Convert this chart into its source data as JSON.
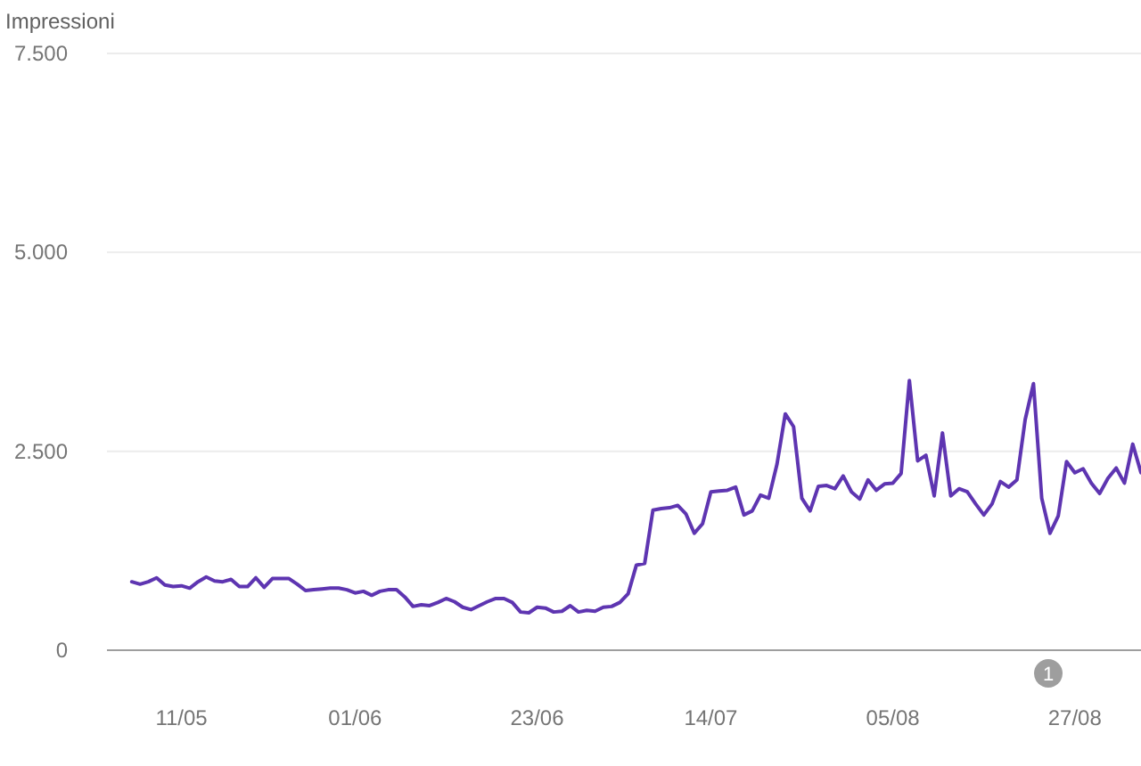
{
  "chart_data": {
    "type": "line",
    "ylabel": "Impressioni",
    "ylim": [
      0,
      7500
    ],
    "yticks": [
      {
        "value": 0,
        "label": "0"
      },
      {
        "value": 2500,
        "label": "2.500"
      },
      {
        "value": 5000,
        "label": "5.000"
      },
      {
        "value": 7500,
        "label": "7.500"
      }
    ],
    "xlim": [
      "--05-02",
      "--09-04"
    ],
    "xticks": [
      {
        "value": "--05-11",
        "label": "11/05"
      },
      {
        "value": "--06-01",
        "label": "01/06"
      },
      {
        "value": "--06-23",
        "label": "23/06"
      },
      {
        "value": "--07-14",
        "label": "14/07"
      },
      {
        "value": "--08-05",
        "label": "05/08"
      },
      {
        "value": "--08-27",
        "label": "27/08"
      }
    ],
    "grid": "y",
    "marker": "none",
    "line_style": "solid",
    "annotations": [
      "1"
    ],
    "x": [
      "--05-05",
      "--05-06",
      "--05-07",
      "--05-08",
      "--05-09",
      "--05-10",
      "--05-11",
      "--05-12",
      "--05-13",
      "--05-14",
      "--05-15",
      "--05-16",
      "--05-17",
      "--05-18",
      "--05-19",
      "--05-20",
      "--05-21",
      "--05-22",
      "--05-23",
      "--05-24",
      "--05-25",
      "--05-26",
      "--05-27",
      "--05-28",
      "--05-29",
      "--05-30",
      "--05-31",
      "--06-01",
      "--06-02",
      "--06-03",
      "--06-04",
      "--06-05",
      "--06-06",
      "--06-07",
      "--06-08",
      "--06-09",
      "--06-10",
      "--06-11",
      "--06-12",
      "--06-13",
      "--06-14",
      "--06-15",
      "--06-16",
      "--06-17",
      "--06-18",
      "--06-19",
      "--06-20",
      "--06-21",
      "--06-22",
      "--06-23",
      "--06-24",
      "--06-25",
      "--06-26",
      "--06-27",
      "--06-28",
      "--06-29",
      "--06-30",
      "--07-01",
      "--07-02",
      "--07-03",
      "--07-04",
      "--07-05",
      "--07-06",
      "--07-07",
      "--07-08",
      "--07-09",
      "--07-10",
      "--07-11",
      "--07-12",
      "--07-13",
      "--07-14",
      "--07-15",
      "--07-16",
      "--07-17",
      "--07-18",
      "--07-19",
      "--07-20",
      "--07-21",
      "--07-22",
      "--07-23",
      "--07-24",
      "--07-25",
      "--07-26",
      "--07-27",
      "--07-28",
      "--07-29",
      "--07-30",
      "--07-31",
      "--08-01",
      "--08-02",
      "--08-03",
      "--08-04",
      "--08-05",
      "--08-06",
      "--08-07",
      "--08-08",
      "--08-09",
      "--08-10",
      "--08-11",
      "--08-12",
      "--08-13",
      "--08-14",
      "--08-15",
      "--08-16",
      "--08-17",
      "--08-18",
      "--08-19",
      "--08-20",
      "--08-21",
      "--08-22",
      "--08-23",
      "--08-24",
      "--08-25",
      "--08-26",
      "--08-27",
      "--08-28",
      "--08-29",
      "--08-30",
      "--08-31",
      "--09-01",
      "--09-02",
      "--09-03",
      "--09-04"
    ],
    "series": [
      {
        "color": "#5e35b1",
        "values": [
          860,
          830,
          860,
          910,
          820,
          800,
          810,
          780,
          860,
          920,
          870,
          860,
          890,
          800,
          800,
          910,
          790,
          900,
          900,
          900,
          830,
          750,
          760,
          770,
          780,
          780,
          760,
          720,
          740,
          690,
          740,
          760,
          760,
          670,
          550,
          570,
          560,
          600,
          650,
          610,
          540,
          510,
          560,
          610,
          650,
          650,
          600,
          480,
          470,
          540,
          530,
          480,
          490,
          560,
          480,
          500,
          490,
          540,
          550,
          600,
          710,
          1070,
          1090,
          1760,
          1780,
          1790,
          1820,
          1710,
          1470,
          1590,
          1990,
          2000,
          2010,
          2050,
          1700,
          1750,
          1950,
          1910,
          2340,
          2970,
          2810,
          1910,
          1750,
          2060,
          2070,
          2030,
          2190,
          1990,
          1900,
          2140,
          2010,
          2090,
          2100,
          2220,
          3390,
          2380,
          2450,
          1940,
          2730,
          1940,
          2030,
          1990,
          1840,
          1700,
          1840,
          2120,
          2050,
          2140,
          2900,
          3350,
          1910,
          1470,
          1690,
          2370,
          2230,
          2280,
          2100,
          1970,
          2160,
          2290,
          2100,
          2590,
          2230
        ]
      }
    ]
  }
}
